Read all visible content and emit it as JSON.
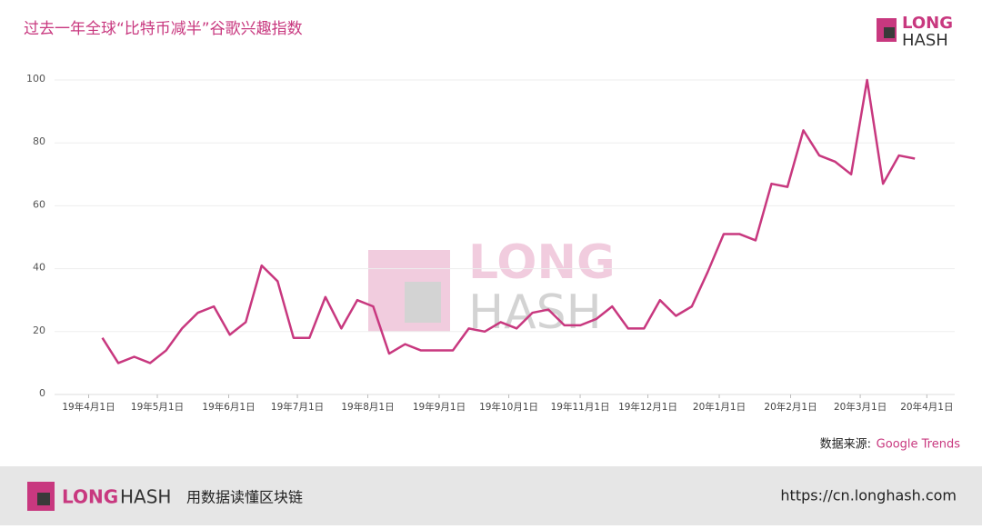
{
  "header": {
    "title": "过去一年全球“比特币减半”谷歌兴趣指数",
    "logo_top": "LONG",
    "logo_bottom": "HASH"
  },
  "chart_data": {
    "type": "line",
    "x": [
      1,
      2,
      3,
      4,
      5,
      6,
      7,
      8,
      9,
      10,
      11,
      12,
      13,
      14,
      15,
      16,
      17,
      18,
      19,
      20,
      21,
      22,
      23,
      24,
      25,
      26,
      27,
      28,
      29,
      30,
      31,
      32,
      33,
      34,
      35,
      36,
      37,
      38,
      39,
      40,
      41,
      42,
      43,
      44,
      45,
      46,
      47,
      48,
      49,
      50,
      51,
      52
    ],
    "series": [
      {
        "name": "比特币减半",
        "color": "#c8387f",
        "values": [
          18,
          10,
          12,
          10,
          14,
          21,
          26,
          28,
          19,
          23,
          41,
          36,
          18,
          18,
          31,
          21,
          30,
          28,
          13,
          16,
          14,
          14,
          14,
          21,
          20,
          23,
          21,
          26,
          27,
          22,
          22,
          24,
          28,
          21,
          21,
          30,
          25,
          28,
          39,
          51,
          51,
          49,
          67,
          66,
          84,
          76,
          74,
          70,
          100,
          67,
          76,
          75
        ]
      }
    ],
    "xlim": [
      -2,
      54.5
    ],
    "xticks": [
      {
        "value": 0.14,
        "label": "19年4月1日"
      },
      {
        "value": 4.45,
        "label": "19年5月1日"
      },
      {
        "value": 8.93,
        "label": "19年6月1日"
      },
      {
        "value": 13.24,
        "label": "19年7月1日"
      },
      {
        "value": 17.66,
        "label": "19年8月1日"
      },
      {
        "value": 22.14,
        "label": "19年9月1日"
      },
      {
        "value": 26.51,
        "label": "19年10月1日"
      },
      {
        "value": 30.99,
        "label": "19年11月1日"
      },
      {
        "value": 35.24,
        "label": "19年12月1日"
      },
      {
        "value": 39.72,
        "label": "20年1月1日"
      },
      {
        "value": 44.2,
        "label": "20年2月1日"
      },
      {
        "value": 48.57,
        "label": "20年3月1日"
      },
      {
        "value": 52.75,
        "label": "20年4月1日"
      }
    ],
    "ylim": [
      0,
      100
    ],
    "yticks": [
      0,
      20,
      40,
      60,
      80,
      100
    ],
    "grid": true
  },
  "source": {
    "label": "数据来源:",
    "name": "Google Trends"
  },
  "watermark": {
    "top": "LONG",
    "bottom": "HASH"
  },
  "footer": {
    "logo_a": "LONG",
    "logo_b": "HASH",
    "slogan": "用数据读懂区块链",
    "url": "https://cn.longhash.com"
  }
}
